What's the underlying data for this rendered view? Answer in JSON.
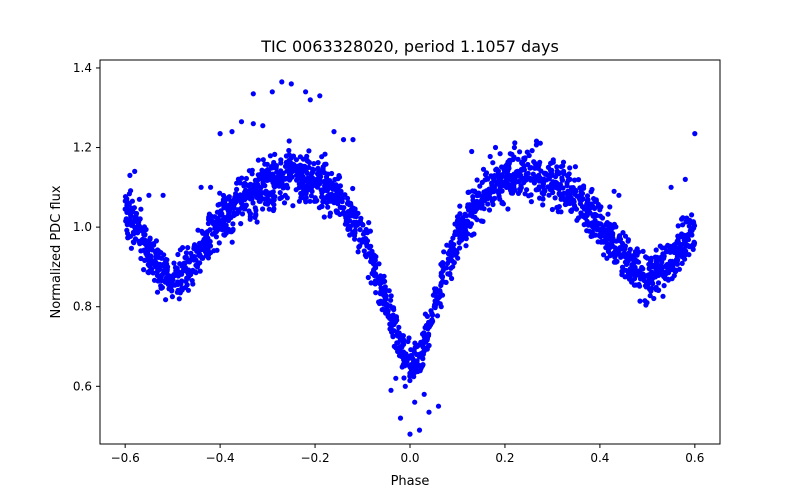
{
  "chart_data": {
    "type": "scatter",
    "title": "TIC 0063328020, period 1.1057 days",
    "xlabel": "Phase",
    "ylabel": "Normalized PDC flux",
    "xlim": [
      -0.653,
      0.653
    ],
    "ylim": [
      0.455,
      1.42
    ],
    "xticks": [
      -0.6,
      -0.4,
      -0.2,
      0.0,
      0.2,
      0.4,
      0.6
    ],
    "xtick_labels": [
      "−0.6",
      "−0.4",
      "−0.2",
      "0.0",
      "0.2",
      "0.4",
      "0.6"
    ],
    "yticks": [
      0.6,
      0.8,
      1.0,
      1.2,
      1.4
    ],
    "ytick_labels": [
      "0.6",
      "0.8",
      "1.0",
      "1.2",
      "1.4"
    ],
    "grid": false,
    "legend": "none",
    "marker_color": "#0000ff",
    "light_curve_profile": {
      "description_of_shape": "phase-folded eclipsing binary: deep primary minimum at phase 0, secondary minima near +/-0.5, maxima near +/-0.25",
      "profile_points": [
        [
          -0.6,
          1.05
        ],
        [
          -0.55,
          0.93
        ],
        [
          -0.5,
          0.86
        ],
        [
          -0.45,
          0.92
        ],
        [
          -0.4,
          1.01
        ],
        [
          -0.35,
          1.07
        ],
        [
          -0.3,
          1.11
        ],
        [
          -0.25,
          1.13
        ],
        [
          -0.2,
          1.12
        ],
        [
          -0.15,
          1.08
        ],
        [
          -0.1,
          0.98
        ],
        [
          -0.07,
          0.88
        ],
        [
          -0.04,
          0.77
        ],
        [
          -0.02,
          0.7
        ],
        [
          0.0,
          0.645
        ],
        [
          0.02,
          0.67
        ],
        [
          0.04,
          0.75
        ],
        [
          0.07,
          0.88
        ],
        [
          0.1,
          0.98
        ],
        [
          0.15,
          1.08
        ],
        [
          0.2,
          1.12
        ],
        [
          0.25,
          1.135
        ],
        [
          0.3,
          1.12
        ],
        [
          0.35,
          1.08
        ],
        [
          0.4,
          1.01
        ],
        [
          0.45,
          0.93
        ],
        [
          0.5,
          0.87
        ],
        [
          0.55,
          0.92
        ],
        [
          0.6,
          0.99
        ]
      ]
    },
    "outliers": [
      [
        -0.27,
        1.365
      ],
      [
        -0.25,
        1.36
      ],
      [
        -0.29,
        1.34
      ],
      [
        -0.33,
        1.335
      ],
      [
        -0.22,
        1.34
      ],
      [
        -0.19,
        1.33
      ],
      [
        -0.21,
        1.32
      ],
      [
        -0.33,
        1.26
      ],
      [
        -0.31,
        1.255
      ],
      [
        -0.355,
        1.265
      ],
      [
        -0.375,
        1.24
      ],
      [
        -0.4,
        1.235
      ],
      [
        -0.16,
        1.24
      ],
      [
        -0.14,
        1.22
      ],
      [
        -0.12,
        1.22
      ],
      [
        -0.58,
        1.14
      ],
      [
        -0.59,
        1.13
      ],
      [
        -0.55,
        1.08
      ],
      [
        -0.57,
        1.07
      ],
      [
        -0.52,
        1.08
      ],
      [
        -0.44,
        1.1
      ],
      [
        -0.42,
        1.1
      ],
      [
        0.6,
        1.235
      ],
      [
        0.58,
        1.12
      ],
      [
        0.55,
        1.1
      ],
      [
        0.43,
        1.09
      ],
      [
        0.44,
        1.08
      ],
      [
        0.18,
        1.2
      ],
      [
        0.13,
        1.19
      ],
      [
        0.22,
        1.2
      ],
      [
        0.0,
        0.48
      ],
      [
        0.02,
        0.49
      ],
      [
        0.04,
        0.535
      ],
      [
        -0.02,
        0.52
      ],
      [
        0.06,
        0.55
      ],
      [
        -0.04,
        0.59
      ],
      [
        0.01,
        0.56
      ],
      [
        -0.01,
        0.6
      ],
      [
        0.03,
        0.58
      ],
      [
        -0.03,
        0.62
      ]
    ]
  }
}
